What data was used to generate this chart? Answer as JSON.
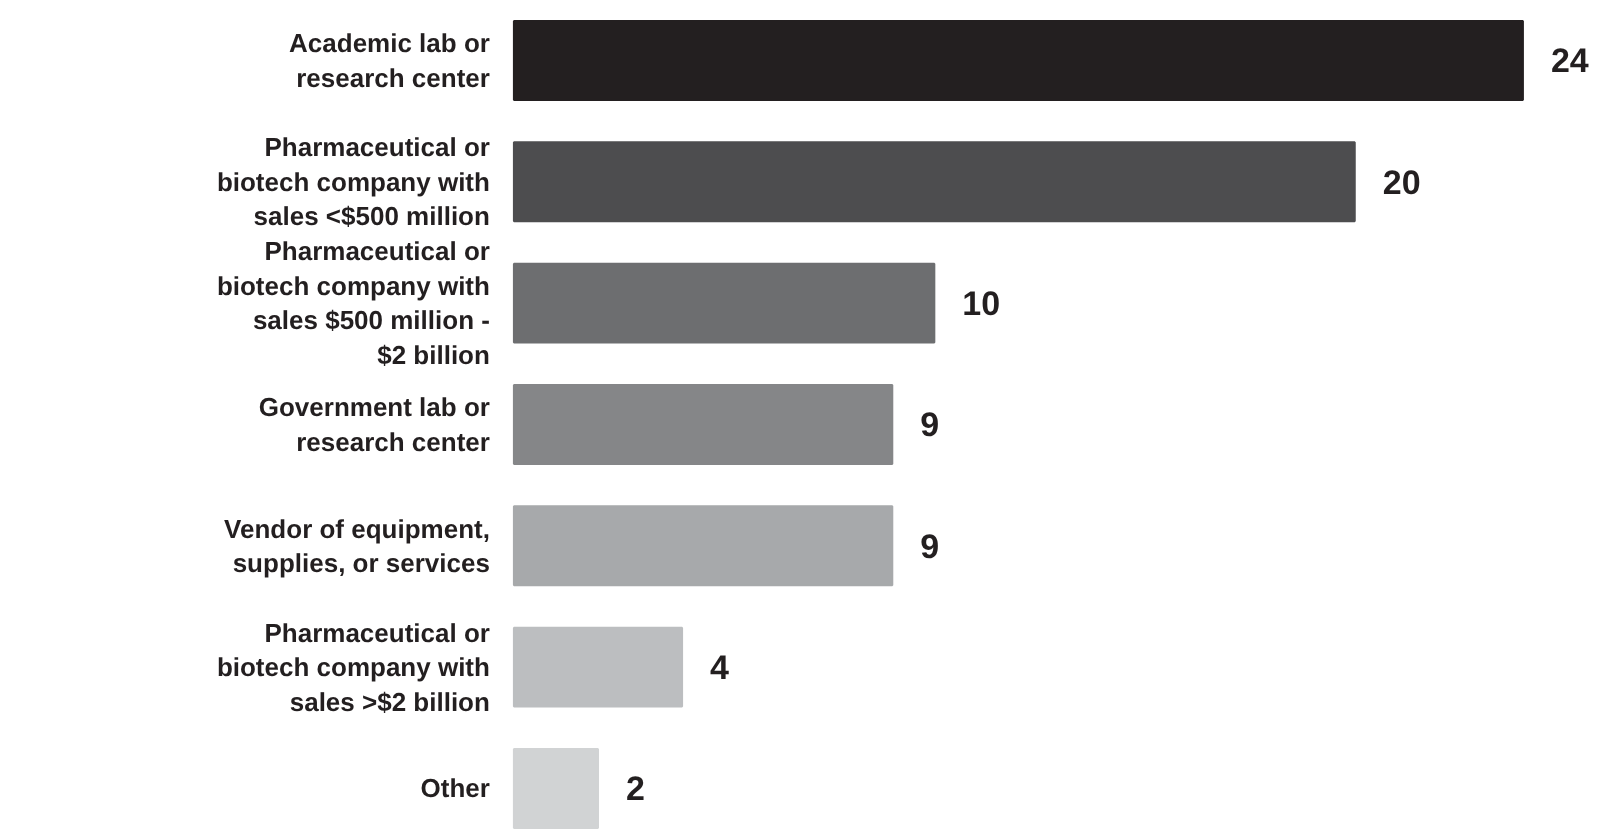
{
  "chart_data": {
    "type": "bar",
    "orientation": "horizontal",
    "categories": [
      "Academic lab or research center",
      "Pharmaceutical or biotech company with sales <$500 million",
      "Pharmaceutical or biotech company with sales $500 million - $2 billion",
      "Government lab or research center",
      "Vendor of equipment, supplies, or services",
      "Pharmaceutical or biotech company with sales >$2 billion",
      "Other"
    ],
    "values": [
      24,
      20,
      10,
      9,
      9,
      4,
      2
    ],
    "colors": [
      "#231f20",
      "#4d4d4f",
      "#6d6e70",
      "#858688",
      "#a7a9ab",
      "#bcbec0",
      "#d1d3d4"
    ],
    "data_labels": true
  }
}
